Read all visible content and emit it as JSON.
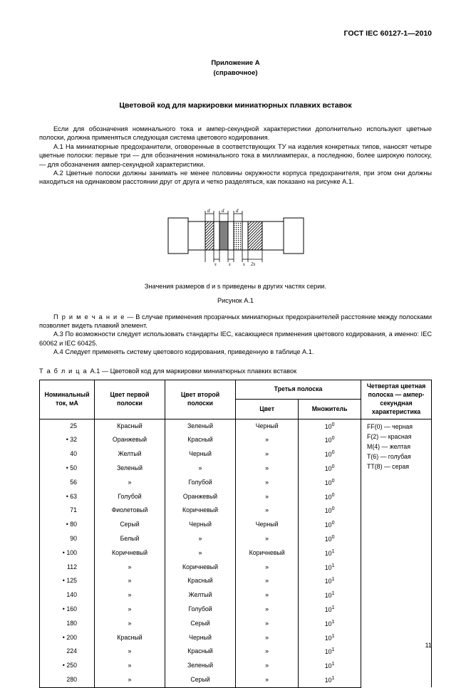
{
  "doc_id": "ГОСТ IEC 60127-1—2010",
  "appendix_label": "Приложение А",
  "appendix_kind": "(справочное)",
  "section_title": "Цветовой код для маркировки миниатюрных плавких вставок",
  "p_intro": "Если для обозначения номинального тока и ампер-секундной характеристики дополнительно используют цветные полоски, должна применяться следующая система цветового кодирования.",
  "p_a1": "А.1  На миниатюрные предохранители, оговоренные в соответствующих ТУ на изделия конкретных типов, наносят четыре цветные полоски: первые три — для обозначения номинального тока в миллиамперах, а последнюю, более широкую полоску, — для обозначения ампер-секундной характеристики.",
  "p_a2": "А.2  Цветные полоски должны занимать не менее половины окружности корпуса предохранителя, при этом они должны находиться на одинаковом расстоянии друг от друга и четко разделяться, как показано на рисунке А.1.",
  "fig_note": "Значения размеров d и s приведены в других частях серии.",
  "fig_label": "Рисунок А.1",
  "note_prefix": "П р и м е ч а н и е",
  "note_body": " — В случае применения прозрачных миниатюрных предохранителей расстояние между полосками позволяет видеть плавкий элемент.",
  "p_a3": "А.3  По возможности следует использовать стандарты IEC, касающиеся применения цветового кодирования, а именно: IEC 60062 и IEC 60425.",
  "p_a4": "А.4  Следует применять систему цветового кодирования, приведенную в таблице А.1.",
  "tbl_cap_prefix": "Т а б л и ц а ",
  "tbl_cap_body": " А.1 — Цветовой код для маркировки миниатюрных плавких вставок",
  "headers": {
    "nominal": "Номинальный ток, мА",
    "band1": "Цвет первой полоски",
    "band2": "Цвет второй полоски",
    "third": "Третья полоска",
    "third_color": "Цвет",
    "third_mult": "Множитель",
    "fourth": "Четвертая цветная полоска — ампер-секундная характеристика"
  },
  "legend": [
    "FF(0) — черная",
    "F(2) — красная",
    "M(4) — желтая",
    "T(6) — голубая",
    "TT(8) — серая"
  ],
  "rows": [
    {
      "n": "25",
      "s": false,
      "b1": "Красный",
      "b2": "Зеленый",
      "c": "Черный",
      "m": "10",
      "e": "0"
    },
    {
      "n": "32",
      "s": true,
      "b1": "Оранжевый",
      "b2": "Красный",
      "c": "»",
      "m": "10",
      "e": "0"
    },
    {
      "n": "40",
      "s": false,
      "b1": "Желтый",
      "b2": "Черный",
      "c": "»",
      "m": "10",
      "e": "0"
    },
    {
      "n": "50",
      "s": true,
      "b1": "Зеленый",
      "b2": "»",
      "c": "»",
      "m": "10",
      "e": "0"
    },
    {
      "n": "56",
      "s": false,
      "b1": "»",
      "b2": "Голубой",
      "c": "»",
      "m": "10",
      "e": "0"
    },
    {
      "n": "63",
      "s": true,
      "b1": "Голубой",
      "b2": "Оранжевый",
      "c": "»",
      "m": "10",
      "e": "0"
    },
    {
      "n": "71",
      "s": false,
      "b1": "Фиолетовый",
      "b2": "Коричневый",
      "c": "»",
      "m": "10",
      "e": "0"
    },
    {
      "n": "80",
      "s": true,
      "b1": "Серый",
      "b2": "Черный",
      "c": "Черный",
      "m": "10",
      "e": "0"
    },
    {
      "n": "90",
      "s": false,
      "b1": "Белый",
      "b2": "»",
      "c": "»",
      "m": "10",
      "e": "0"
    },
    {
      "n": "100",
      "s": true,
      "b1": "Коричневый",
      "b2": "»",
      "c": "Коричневый",
      "m": "10",
      "e": "1"
    },
    {
      "n": "112",
      "s": false,
      "b1": "»",
      "b2": "Коричневый",
      "c": "»",
      "m": "10",
      "e": "1"
    },
    {
      "n": "125",
      "s": true,
      "b1": "»",
      "b2": "Красный",
      "c": "»",
      "m": "10",
      "e": "1"
    },
    {
      "n": "140",
      "s": false,
      "b1": "»",
      "b2": "Желтый",
      "c": "»",
      "m": "10",
      "e": "1"
    },
    {
      "n": "160",
      "s": true,
      "b1": "»",
      "b2": "Голубой",
      "c": "»",
      "m": "10",
      "e": "1"
    },
    {
      "n": "180",
      "s": false,
      "b1": "»",
      "b2": "Серый",
      "c": "»",
      "m": "10",
      "e": "1"
    },
    {
      "n": "200",
      "s": true,
      "b1": "Красный",
      "b2": "Черный",
      "c": "»",
      "m": "10",
      "e": "1"
    },
    {
      "n": "224",
      "s": false,
      "b1": "»",
      "b2": "Красный",
      "c": "»",
      "m": "10",
      "e": "1"
    },
    {
      "n": "250",
      "s": true,
      "b1": "»",
      "b2": "Зеленый",
      "c": "»",
      "m": "10",
      "e": "1"
    },
    {
      "n": "280",
      "s": false,
      "b1": "»",
      "b2": "Серый",
      "c": "»",
      "m": "10",
      "e": "1"
    }
  ],
  "pageno": "11",
  "svg": {
    "colors": {
      "stroke": "#000000",
      "fill_white": "#ffffff",
      "fill_gray": "#808080"
    },
    "line_w": 1
  }
}
